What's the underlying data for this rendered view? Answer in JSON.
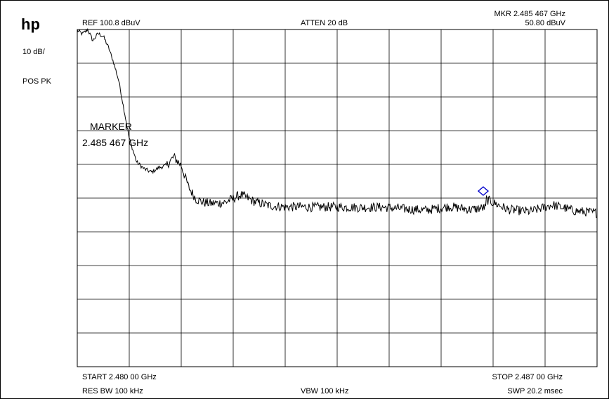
{
  "logo": "hp",
  "header": {
    "ref": "REF  100.8 dBuV",
    "atten": "ATTEN 20 dB",
    "mkr_freq": "MKR 2.485 467 GHz",
    "mkr_level": "50.80 dBuV"
  },
  "left": {
    "scale": "10 dB/",
    "detector": "POS PK"
  },
  "marker_text": {
    "line1": "MARKER",
    "line2": "2.485 467 GHz"
  },
  "footer": {
    "start": "START 2.480 00 GHz",
    "stop": "STOP 2.487 00 GHz",
    "rbw": "RES BW 100 kHz",
    "vbw": "VBW 100 kHz",
    "swp": "SWP 20.2 msec"
  },
  "chart_data": {
    "type": "line",
    "x_unit": "GHz",
    "y_unit": "dBuV",
    "xlim": [
      2.48,
      2.487
    ],
    "ylim": [
      0.8,
      100.8
    ],
    "grid": true,
    "x_divisions": 10,
    "y_divisions": 10,
    "marker": {
      "x": 2.485467,
      "y": 50.8
    },
    "trace_color": "#000000",
    "marker_color": "#0000cc",
    "series": [
      {
        "x": [
          2.48,
          2.48007,
          2.48014,
          2.48021,
          2.48028,
          2.48035,
          2.48042,
          2.48049,
          2.48056,
          2.48063,
          2.4807,
          2.4808,
          2.4809,
          2.481,
          2.4811,
          2.4812,
          2.4813,
          2.4814,
          2.4815,
          2.4816,
          2.4817,
          2.4818,
          2.4819,
          2.482,
          2.4822,
          2.4824,
          2.4826,
          2.4828,
          2.483,
          2.4832,
          2.4835,
          2.4838,
          2.4841,
          2.4844,
          2.4847,
          2.485,
          2.4853,
          2.4855,
          2.48547,
          2.4858,
          2.4861,
          2.4864,
          2.4867,
          2.487
        ],
        "y": [
          100.5,
          99.5,
          100.8,
          97.5,
          99.6,
          98.8,
          95.5,
          91,
          85.5,
          77,
          68.5,
          61.5,
          59.5,
          58.5,
          59.8,
          60.5,
          63,
          60.5,
          54,
          50.5,
          49.5,
          49.2,
          49.3,
          49.6,
          51.8,
          49.6,
          48.5,
          48.2,
          48.2,
          48.1,
          48.2,
          48.0,
          48.1,
          47.6,
          47.2,
          48.3,
          47.4,
          48.0,
          50.8,
          47.4,
          46.8,
          48.8,
          47.0,
          46.4
        ]
      }
    ]
  }
}
